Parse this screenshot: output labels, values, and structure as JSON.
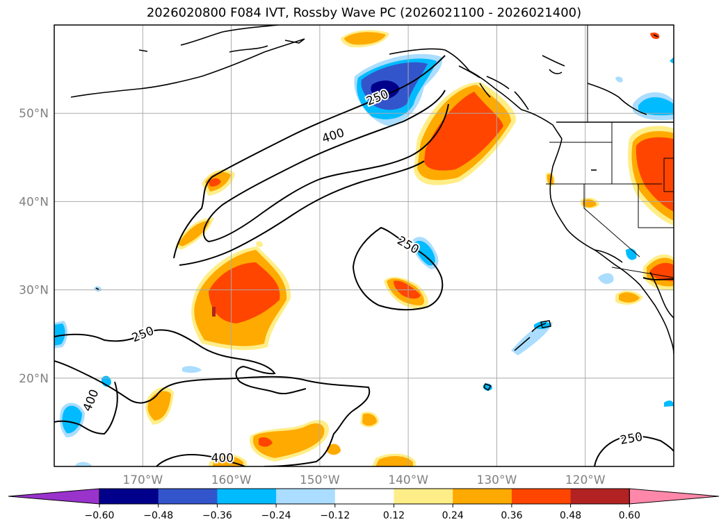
{
  "title": "2026020800 F084 IVT, Rossby Wave PC (2026021100 - 2026021400)",
  "map": {
    "lon_range": [
      -180,
      -110
    ],
    "lat_range": [
      10,
      60
    ],
    "lat_ticks": [
      {
        "value": 20,
        "label": "20°N"
      },
      {
        "value": 30,
        "label": "30°N"
      },
      {
        "value": 40,
        "label": "40°N"
      },
      {
        "value": 50,
        "label": "50°N"
      }
    ],
    "lon_ticks": [
      {
        "value": -170,
        "label": "170°W"
      },
      {
        "value": -160,
        "label": "160°W"
      },
      {
        "value": -150,
        "label": "150°W"
      },
      {
        "value": -140,
        "label": "140°W"
      },
      {
        "value": -130,
        "label": "130°W"
      },
      {
        "value": -120,
        "label": "120°W"
      }
    ],
    "grid": true,
    "contour_labels": [
      {
        "text": "250",
        "lon": -143.5,
        "lat": 51.8,
        "angle": -22
      },
      {
        "text": "400",
        "lon": -148.5,
        "lat": 47.5,
        "angle": -18
      },
      {
        "text": "250",
        "lon": -140,
        "lat": 35.1,
        "angle": 30
      },
      {
        "text": "250",
        "lon": -170,
        "lat": 25,
        "angle": -22
      },
      {
        "text": "400",
        "lon": -175.9,
        "lat": 17.5,
        "angle": -68
      },
      {
        "text": "400",
        "lon": -161,
        "lat": 11,
        "angle": 0
      },
      {
        "text": "250",
        "lon": -114.8,
        "lat": 13.2,
        "angle": -10
      }
    ]
  },
  "colorbar": {
    "ticks": [
      "−0.60",
      "−0.48",
      "−0.36",
      "−0.24",
      "−0.12",
      "0.12",
      "0.24",
      "0.36",
      "0.48",
      "0.60"
    ],
    "low_extend_color": "#9933cc",
    "high_extend_color": "#ff88aa",
    "colors": [
      "#00008b",
      "#3355cc",
      "#00bbff",
      "#aaddff",
      "#ffffff",
      "#ffee88",
      "#ffaa00",
      "#ff4500",
      "#b22222"
    ]
  },
  "palette": {
    "land_line": "#000000",
    "contour": "#000000",
    "grid": "#aaaaaa"
  }
}
